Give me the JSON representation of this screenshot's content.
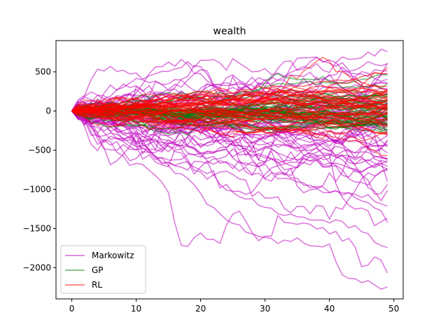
{
  "chart_data": {
    "type": "line",
    "title": "wealth",
    "xlabel": "",
    "ylabel": "",
    "xlim": [
      -2.45,
      51.45
    ],
    "ylim": [
      -2400,
      900
    ],
    "x_ticks": [
      0,
      10,
      20,
      30,
      40,
      50
    ],
    "y_ticks": [
      500,
      0,
      -500,
      -1000,
      -1500,
      -2000
    ],
    "grid": false,
    "legend": {
      "position": "lower-left",
      "entries": [
        {
          "name": "Markowitz",
          "color": "#bf00bf"
        },
        {
          "name": "GP",
          "color": "#008000"
        },
        {
          "name": "RL",
          "color": "#ff0000"
        }
      ]
    },
    "steps": 50,
    "series": [
      {
        "name": "Markowitz",
        "color": "#bf00bf",
        "count": 60,
        "highlighted_paths": [
          {
            "x": [
              0,
              5,
              10,
              15,
              20,
              25,
              30,
              35,
              39,
              40,
              42,
              45,
              48,
              49
            ],
            "y": [
              0,
              -150,
              -350,
              -700,
              -1050,
              -1450,
              -1650,
              -1650,
              -1720,
              -1750,
              -2100,
              -2200,
              -2250,
              -2250
            ]
          },
          {
            "x": [
              0,
              4,
              8,
              12,
              16,
              20,
              25,
              30,
              35,
              40,
              45,
              49
            ],
            "y": [
              0,
              550,
              500,
              420,
              560,
              640,
              600,
              480,
              500,
              570,
              700,
              780
            ]
          },
          {
            "x": [
              0,
              5,
              10,
              15,
              20,
              25,
              30,
              35,
              40,
              45,
              48,
              49
            ],
            "y": [
              0,
              -100,
              -250,
              -500,
              -750,
              -1000,
              -1250,
              -1350,
              -1450,
              -1500,
              -1700,
              -1720
            ]
          },
          {
            "x": [
              0,
              5,
              10,
              15,
              20,
              25,
              30,
              35,
              40,
              45,
              49
            ],
            "y": [
              0,
              -80,
              -200,
              -380,
              -560,
              -700,
              -820,
              -900,
              -1000,
              -1100,
              -1380
            ]
          }
        ]
      },
      {
        "name": "GP",
        "color": "#008000",
        "count": 45
      },
      {
        "name": "RL",
        "color": "#ff0000",
        "count": 45,
        "highlighted_paths": [
          {
            "x": [
              0,
              10,
              20,
              30,
              35,
              38,
              39,
              40,
              42,
              45,
              48,
              49
            ],
            "y": [
              0,
              60,
              120,
              200,
              450,
              640,
              700,
              680,
              500,
              350,
              520,
              520
            ]
          }
        ]
      }
    ]
  }
}
